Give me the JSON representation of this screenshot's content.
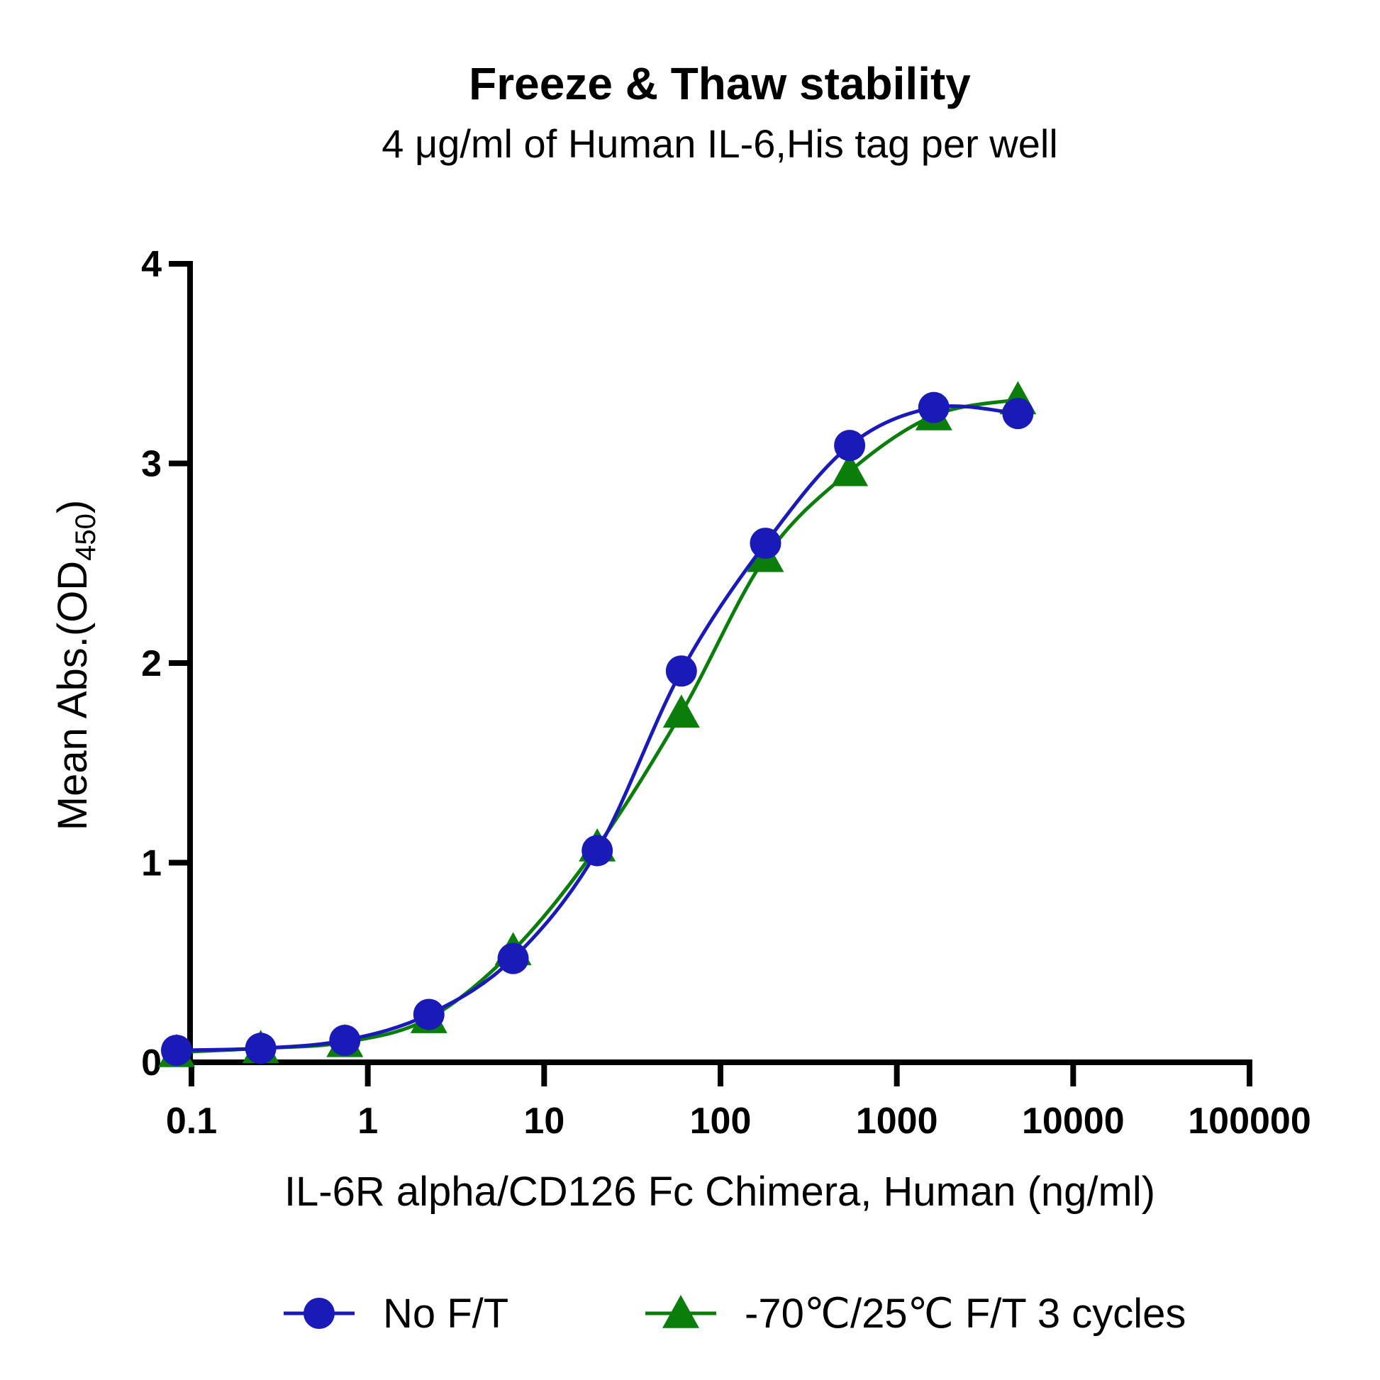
{
  "chart_data": {
    "type": "scatter",
    "title": "Freeze & Thaw stability",
    "subtitle": "4 μg/ml of Human IL-6,His tag per well",
    "xlabel": "IL-6R alpha/CD126 Fc Chimera, Human (ng/ml)",
    "ylabel": {
      "main": "Mean Abs.(OD",
      "subscript": "450",
      "close": ")"
    },
    "xscale": "log",
    "xlim": [
      0.1,
      100000
    ],
    "ylim": [
      0,
      4
    ],
    "x_ticks": [
      {
        "value": 0.1,
        "label": "0.1"
      },
      {
        "value": 1,
        "label": "1"
      },
      {
        "value": 10,
        "label": "10"
      },
      {
        "value": 100,
        "label": "100"
      },
      {
        "value": 1000,
        "label": "1000"
      },
      {
        "value": 10000,
        "label": "10000"
      },
      {
        "value": 100000,
        "label": "100000"
      }
    ],
    "y_ticks": [
      {
        "value": 0,
        "label": "0"
      },
      {
        "value": 1,
        "label": "1"
      },
      {
        "value": 2,
        "label": "2"
      },
      {
        "value": 3,
        "label": "3"
      },
      {
        "value": 4,
        "label": "4"
      }
    ],
    "grid": false,
    "legend_position": "bottom",
    "series": [
      {
        "name": "-70℃/25℃ F/T 3 cycles",
        "color": "#0a7d0a",
        "marker": "triangle",
        "x": [
          0.0823,
          0.247,
          0.741,
          2.22,
          6.67,
          20,
          60,
          180,
          540,
          1620,
          4860
        ],
        "y": [
          0.05,
          0.07,
          0.1,
          0.22,
          0.56,
          1.08,
          1.75,
          2.53,
          2.96,
          3.24,
          3.32
        ]
      },
      {
        "name": "No F/T",
        "color": "#1a1ab8",
        "marker": "circle",
        "x": [
          0.0823,
          0.247,
          0.741,
          2.22,
          6.67,
          20,
          60,
          180,
          540,
          1620,
          4860
        ],
        "y": [
          0.06,
          0.07,
          0.11,
          0.24,
          0.52,
          1.06,
          1.96,
          2.6,
          3.09,
          3.28,
          3.25
        ]
      }
    ]
  }
}
